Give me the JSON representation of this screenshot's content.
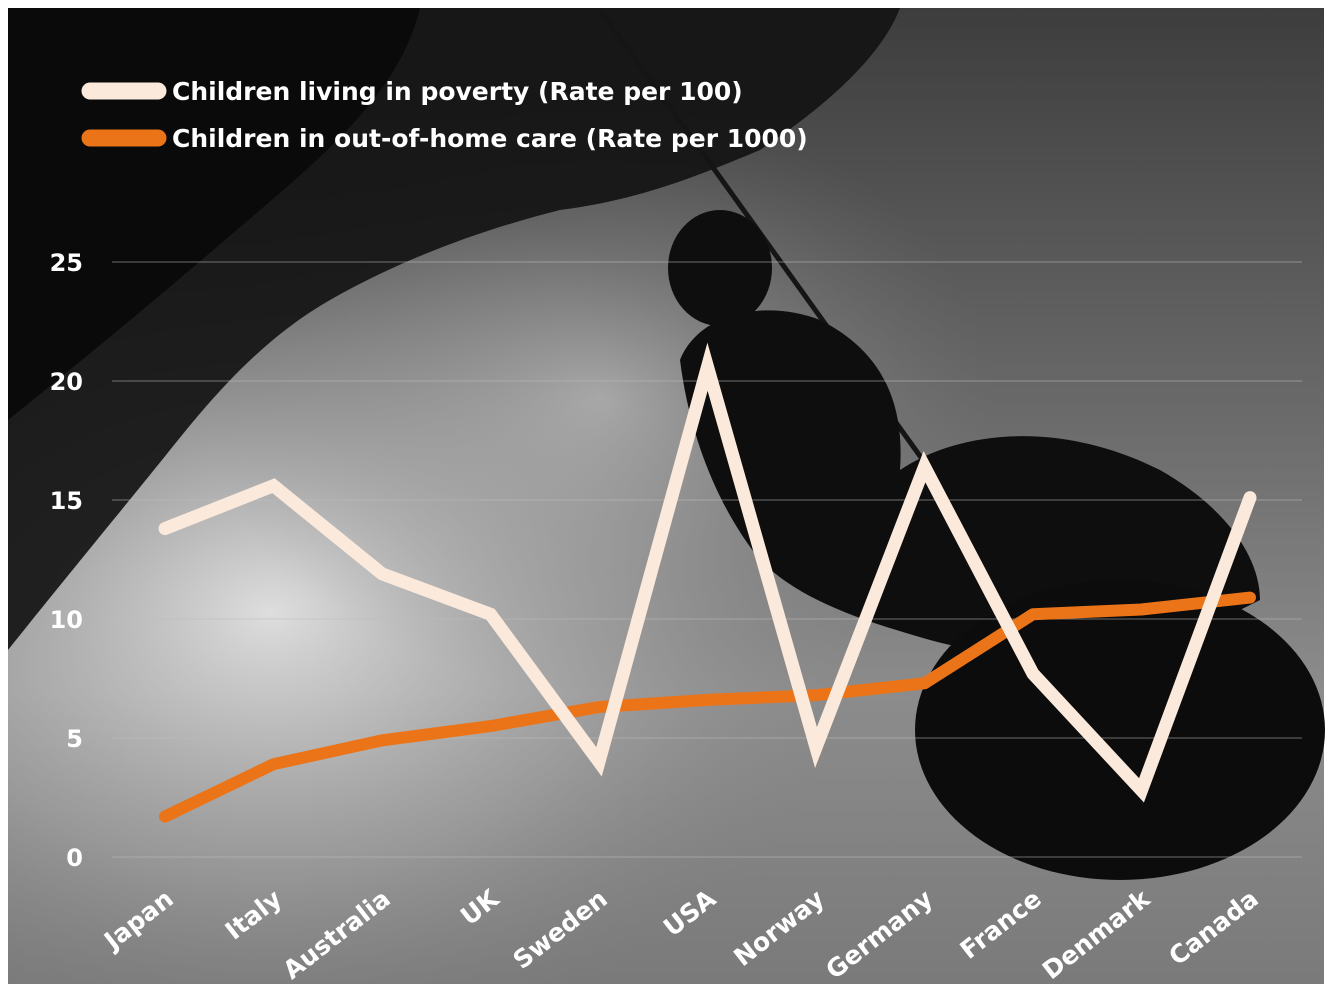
{
  "chart_data": {
    "type": "line",
    "categories": [
      "Japan",
      "Italy",
      "Australia",
      "UK",
      "Sweden",
      "USA",
      "Norway",
      "Germany",
      "France",
      "Denmark",
      "Canada"
    ],
    "series": [
      {
        "name": "Children living in poverty (Rate per 100)",
        "values": [
          13.8,
          15.6,
          11.9,
          10.2,
          4.0,
          20.6,
          4.6,
          16.4,
          7.7,
          2.8,
          15.1
        ],
        "color": "#fbeadc"
      },
      {
        "name": "Children in out-of-home care (Rate per 1000)",
        "values": [
          1.7,
          3.9,
          4.9,
          5.5,
          6.3,
          6.6,
          6.8,
          7.3,
          10.2,
          10.4,
          10.9
        ],
        "color": "#ec7418"
      }
    ],
    "yticks": [
      0,
      5,
      10,
      15,
      20,
      25
    ],
    "ylim": [
      0,
      25
    ],
    "grid": true,
    "legend": "top-left"
  },
  "colors": {
    "tick_label": "#ffffff",
    "gridline": "#bdbdbd"
  }
}
